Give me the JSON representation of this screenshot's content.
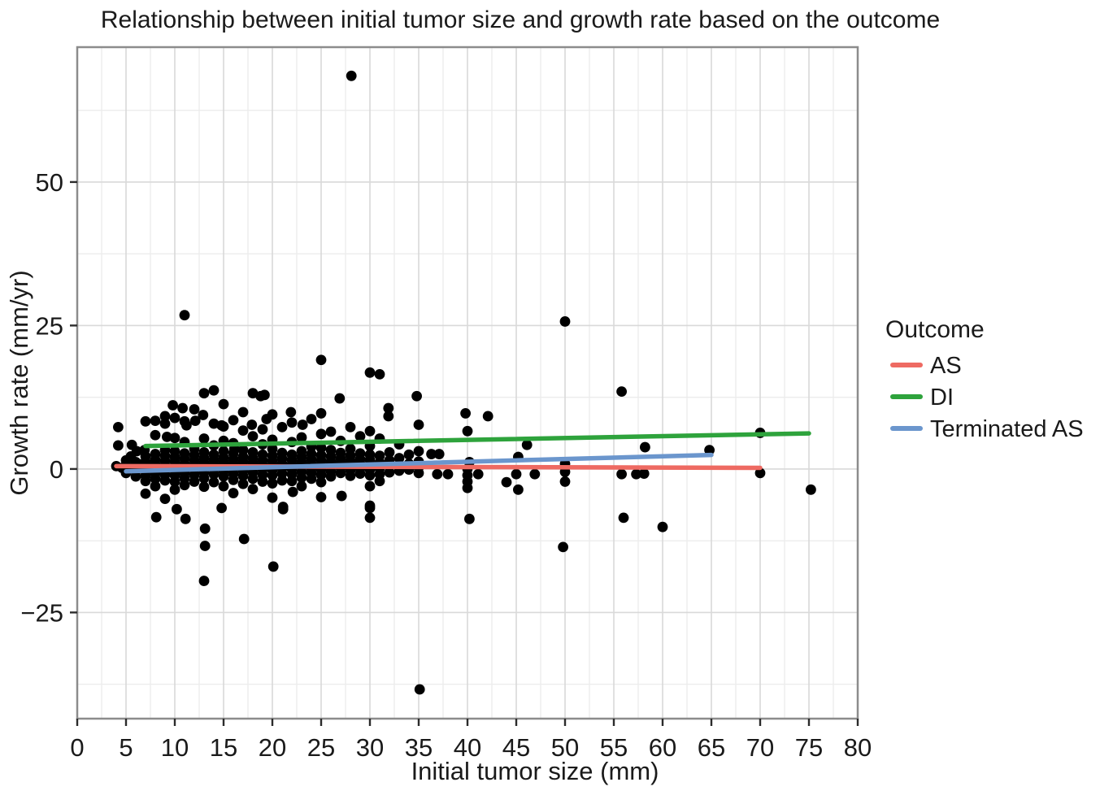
{
  "title": "Relationship between initial tumor size and growth rate based on the outcome",
  "chart_data": {
    "type": "scatter",
    "title": "Relationship between initial tumor size and growth rate based on the outcome",
    "xlabel": "Initial tumor size (mm)",
    "ylabel": "Growth rate (mm/yr)",
    "xlim": [
      0,
      80
    ],
    "ylim": [
      -43.5,
      73.5
    ],
    "x_ticks": [
      0,
      5,
      10,
      15,
      20,
      25,
      30,
      35,
      40,
      45,
      50,
      55,
      60,
      65,
      70,
      75,
      80
    ],
    "x_tick_labels": [
      "0",
      "5",
      "10",
      "15",
      "20",
      "25",
      "30",
      "35",
      "40",
      "45",
      "50",
      "55",
      "60",
      "65",
      "70",
      "75",
      "80"
    ],
    "y_ticks": [
      -25,
      0,
      25,
      50
    ],
    "y_tick_labels": [
      "−25",
      "0",
      "25",
      "50"
    ],
    "grid": true,
    "grid_major_color": "#d9d9d9",
    "grid_minor_color": "#ececec",
    "panel_border_color": "#8c8c8c",
    "point_color": "#000000",
    "point_radius_px": 6.4,
    "legend": {
      "title": "Outcome",
      "position": "right",
      "entries": [
        {
          "label": "AS",
          "color": "#EE6A62"
        },
        {
          "label": "DI",
          "color": "#2EA33C"
        },
        {
          "label": "Terminated AS",
          "color": "#6B96CD"
        }
      ]
    },
    "trend_lines": [
      {
        "name": "AS",
        "color": "#EE6A62",
        "x1": 4,
        "y1": 0.5,
        "x2": 70,
        "y2": 0.2
      },
      {
        "name": "DI",
        "color": "#2EA33C",
        "x1": 7,
        "y1": 4.0,
        "x2": 75,
        "y2": 6.2
      },
      {
        "name": "Terminated AS",
        "color": "#6B96CD",
        "x1": 5,
        "y1": -0.4,
        "x2": 65,
        "y2": 2.45
      }
    ],
    "points": [
      [
        4.2,
        7.3
      ],
      [
        4.2,
        4.1
      ],
      [
        4,
        0.5
      ],
      [
        4.6,
        0.2
      ],
      [
        5,
        1.5
      ],
      [
        5,
        0.7
      ],
      [
        5,
        0
      ],
      [
        5,
        -0.7
      ],
      [
        5.5,
        2.2
      ],
      [
        5.6,
        4.2
      ],
      [
        6,
        1.2
      ],
      [
        6,
        0.4
      ],
      [
        6,
        -0.4
      ],
      [
        6,
        -1.3
      ],
      [
        6.1,
        3.1
      ],
      [
        6.5,
        0.8
      ],
      [
        6.9,
        3.3
      ],
      [
        7,
        8.3
      ],
      [
        7,
        2.2
      ],
      [
        7,
        1.2
      ],
      [
        7,
        0.4
      ],
      [
        7,
        -0.4
      ],
      [
        7,
        -1.2
      ],
      [
        7,
        -2.1
      ],
      [
        7,
        -4.3
      ],
      [
        8,
        8.4
      ],
      [
        8,
        5.9
      ],
      [
        8,
        2.6
      ],
      [
        8,
        1.6
      ],
      [
        8,
        0.8
      ],
      [
        8,
        0
      ],
      [
        8,
        -0.8
      ],
      [
        8,
        -1.7
      ],
      [
        8,
        -3
      ],
      [
        8.1,
        -8.4
      ],
      [
        9,
        9.2
      ],
      [
        9,
        7.9
      ],
      [
        9.2,
        5.6
      ],
      [
        9,
        3.3
      ],
      [
        9,
        2.3
      ],
      [
        9,
        1.4
      ],
      [
        9,
        0.6
      ],
      [
        9,
        -0.2
      ],
      [
        9,
        -1
      ],
      [
        9,
        -2
      ],
      [
        9,
        -5.2
      ],
      [
        9.8,
        11.1
      ],
      [
        10,
        8.9
      ],
      [
        10,
        5.4
      ],
      [
        10,
        3.1
      ],
      [
        10,
        2.1
      ],
      [
        10,
        1.3
      ],
      [
        10,
        0.5
      ],
      [
        10,
        -0.3
      ],
      [
        10,
        -1.1
      ],
      [
        10,
        -2.2
      ],
      [
        10,
        -3.6
      ],
      [
        10.2,
        -7
      ],
      [
        11,
        26.8
      ],
      [
        10.8,
        10.6
      ],
      [
        11,
        8.3
      ],
      [
        11.2,
        7.6
      ],
      [
        11,
        4.7
      ],
      [
        11,
        2.7
      ],
      [
        11,
        1.8
      ],
      [
        11,
        0.9
      ],
      [
        11,
        0.1
      ],
      [
        11,
        -0.7
      ],
      [
        11,
        -1.6
      ],
      [
        11,
        -2.8
      ],
      [
        11.1,
        -8.7
      ],
      [
        12,
        10.4
      ],
      [
        12.1,
        8.4
      ],
      [
        12,
        3.5
      ],
      [
        12,
        2.4
      ],
      [
        12,
        1.5
      ],
      [
        12,
        0.7
      ],
      [
        12,
        -0.1
      ],
      [
        12,
        -1
      ],
      [
        12,
        -2.2
      ],
      [
        12.9,
        9.4
      ],
      [
        13,
        13.2
      ],
      [
        13,
        5.3
      ],
      [
        13,
        2.9
      ],
      [
        13,
        1.9
      ],
      [
        13,
        1.1
      ],
      [
        13,
        0.3
      ],
      [
        13,
        -0.6
      ],
      [
        13,
        -1.6
      ],
      [
        13,
        -3.1
      ],
      [
        13.1,
        -10.4
      ],
      [
        13.1,
        -13.4
      ],
      [
        13,
        -19.5
      ],
      [
        14,
        13.7
      ],
      [
        14,
        7.9
      ],
      [
        14,
        4.1
      ],
      [
        14,
        2.5
      ],
      [
        14,
        1.6
      ],
      [
        14,
        0.8
      ],
      [
        14,
        0
      ],
      [
        14,
        -0.9
      ],
      [
        14,
        -2.3
      ],
      [
        14.8,
        -6.8
      ],
      [
        14.8,
        7.6
      ],
      [
        15,
        11.3
      ],
      [
        15,
        7.4
      ],
      [
        15,
        4.9
      ],
      [
        15,
        3.1
      ],
      [
        15,
        2
      ],
      [
        15,
        1.2
      ],
      [
        15,
        0.4
      ],
      [
        15,
        -0.4
      ],
      [
        15,
        -1.3
      ],
      [
        15,
        -3
      ],
      [
        16,
        8.5
      ],
      [
        16,
        4.5
      ],
      [
        16,
        2.7
      ],
      [
        16,
        1.7
      ],
      [
        16,
        0.9
      ],
      [
        16.1,
        3.5
      ],
      [
        16,
        0.1
      ],
      [
        16,
        -0.8
      ],
      [
        16,
        -1.9
      ],
      [
        16,
        -4.2
      ],
      [
        17,
        9.9
      ],
      [
        17,
        6.7
      ],
      [
        17,
        3.3
      ],
      [
        17,
        2.1
      ],
      [
        17,
        1.3
      ],
      [
        17,
        0.5
      ],
      [
        17,
        -0.3
      ],
      [
        17,
        -1.2
      ],
      [
        17,
        -2.6
      ],
      [
        17.1,
        -12.2
      ],
      [
        18,
        13.2
      ],
      [
        17.9,
        7.7
      ],
      [
        18,
        5.7
      ],
      [
        18,
        2.9
      ],
      [
        18,
        1.9
      ],
      [
        18,
        1.1
      ],
      [
        18,
        0.3
      ],
      [
        18,
        -0.6
      ],
      [
        18,
        -1.7
      ],
      [
        18,
        -3.5
      ],
      [
        19.2,
        12.9
      ],
      [
        18.8,
        12.7
      ],
      [
        19.4,
        8.7
      ],
      [
        19,
        6.9
      ],
      [
        19,
        4.3
      ],
      [
        19,
        2.5
      ],
      [
        19,
        1.5
      ],
      [
        19,
        0.7
      ],
      [
        19,
        -0.1
      ],
      [
        19,
        -1
      ],
      [
        19,
        -2.2
      ],
      [
        20,
        9.5
      ],
      [
        20,
        5.1
      ],
      [
        20,
        3.5
      ],
      [
        20,
        2.3
      ],
      [
        20,
        1.4
      ],
      [
        20,
        0.6
      ],
      [
        20,
        -0.2
      ],
      [
        20,
        -1.1
      ],
      [
        20,
        -2.5
      ],
      [
        20,
        -5
      ],
      [
        20.1,
        -17
      ],
      [
        21.9,
        9.9
      ],
      [
        21,
        7.3
      ],
      [
        21,
        2.8
      ],
      [
        21,
        1.8
      ],
      [
        21,
        0.9
      ],
      [
        21,
        0.1
      ],
      [
        21,
        -0.8
      ],
      [
        21,
        -2
      ],
      [
        21.1,
        -6.6
      ],
      [
        21.1,
        -7
      ],
      [
        22,
        8.1
      ],
      [
        22,
        4.7
      ],
      [
        22,
        2.5
      ],
      [
        22,
        1.6
      ],
      [
        22,
        0.8
      ],
      [
        22,
        0
      ],
      [
        22,
        -0.9
      ],
      [
        22,
        -2.1
      ],
      [
        22.1,
        -4
      ],
      [
        23.1,
        7.7
      ],
      [
        23,
        5.5
      ],
      [
        23,
        3.1
      ],
      [
        23,
        2.1
      ],
      [
        23,
        1.2
      ],
      [
        23,
        0.4
      ],
      [
        23,
        -0.5
      ],
      [
        23,
        -1.5
      ],
      [
        23,
        -3
      ],
      [
        24,
        8.7
      ],
      [
        24,
        3.9
      ],
      [
        24,
        2.6
      ],
      [
        24,
        1.7
      ],
      [
        24,
        0.9
      ],
      [
        24,
        0.1
      ],
      [
        24,
        -0.7
      ],
      [
        24,
        -1.7
      ],
      [
        25,
        19
      ],
      [
        25,
        9.7
      ],
      [
        25,
        6.1
      ],
      [
        25,
        3.7
      ],
      [
        25,
        2.4
      ],
      [
        25,
        1.5
      ],
      [
        25,
        0.7
      ],
      [
        25,
        -0.1
      ],
      [
        25,
        -1
      ],
      [
        25,
        -2.3
      ],
      [
        25,
        -4.9
      ],
      [
        26,
        6.5
      ],
      [
        26,
        3.3
      ],
      [
        26,
        2.2
      ],
      [
        26,
        1.3
      ],
      [
        26,
        0.5
      ],
      [
        26,
        -0.4
      ],
      [
        26,
        -1.3
      ],
      [
        26.9,
        12.3
      ],
      [
        27,
        4.9
      ],
      [
        27,
        2.8
      ],
      [
        27,
        1.8
      ],
      [
        27,
        1
      ],
      [
        27,
        0.2
      ],
      [
        27,
        -0.7
      ],
      [
        27.1,
        -4.7
      ],
      [
        28.1,
        68.5
      ],
      [
        28,
        7.3
      ],
      [
        28,
        3.5
      ],
      [
        28,
        2.3
      ],
      [
        28,
        1.4
      ],
      [
        28,
        0.6
      ],
      [
        28,
        -0.2
      ],
      [
        28,
        -1.2
      ],
      [
        29,
        5.7
      ],
      [
        29,
        2.7
      ],
      [
        29,
        1.7
      ],
      [
        29,
        0.9
      ],
      [
        29,
        0.1
      ],
      [
        29,
        -0.8
      ],
      [
        30,
        16.8
      ],
      [
        30,
        6.6
      ],
      [
        30,
        4
      ],
      [
        30,
        2.5
      ],
      [
        30,
        1.6
      ],
      [
        30,
        0.8
      ],
      [
        30,
        -0.1
      ],
      [
        30,
        -1.1
      ],
      [
        30,
        -3
      ],
      [
        30,
        -6.4
      ],
      [
        30,
        -6.8
      ],
      [
        30,
        -8.5
      ],
      [
        31,
        16.5
      ],
      [
        31,
        5.3
      ],
      [
        31,
        2.3
      ],
      [
        31,
        1.1
      ],
      [
        31,
        0.1
      ],
      [
        31,
        -0.9
      ],
      [
        31,
        -2.1
      ],
      [
        31.9,
        10.6
      ],
      [
        31.9,
        9.2
      ],
      [
        32,
        2.9
      ],
      [
        32,
        1.5
      ],
      [
        32,
        0.5
      ],
      [
        32,
        -0.6
      ],
      [
        33,
        4.3
      ],
      [
        33,
        1.9
      ],
      [
        33,
        0.7
      ],
      [
        33,
        -0.3
      ],
      [
        34,
        2.5
      ],
      [
        34,
        0.9
      ],
      [
        34,
        -0.1
      ],
      [
        34.8,
        12.7
      ],
      [
        35,
        7.7
      ],
      [
        35,
        3.1
      ],
      [
        35,
        1.3
      ],
      [
        35,
        0.3
      ],
      [
        35,
        -0.7
      ],
      [
        35.1,
        -38.4
      ],
      [
        36.3,
        2.6
      ],
      [
        37.1,
        2.6
      ],
      [
        36.9,
        -0.9
      ],
      [
        38,
        -0.9
      ],
      [
        39.8,
        9.7
      ],
      [
        40,
        6.6
      ],
      [
        40.2,
        1.2
      ],
      [
        40,
        0
      ],
      [
        40,
        -1.1
      ],
      [
        40,
        -2.2
      ],
      [
        40,
        -3.3
      ],
      [
        40.2,
        -8.7
      ],
      [
        41.1,
        -0.9
      ],
      [
        42.1,
        9.2
      ],
      [
        44,
        -2.3
      ],
      [
        45.2,
        2.1
      ],
      [
        45,
        -0.9
      ],
      [
        45.2,
        -3.6
      ],
      [
        46.1,
        4.2
      ],
      [
        46.9,
        -0.9
      ],
      [
        50,
        25.7
      ],
      [
        50,
        0.9
      ],
      [
        50,
        -0.5
      ],
      [
        50,
        -2.2
      ],
      [
        49.8,
        -13.6
      ],
      [
        55.8,
        13.5
      ],
      [
        55.8,
        -0.9
      ],
      [
        56,
        -8.5
      ],
      [
        57.3,
        -0.9
      ],
      [
        58.1,
        -0.8
      ],
      [
        58.2,
        3.8
      ],
      [
        60,
        -10.1
      ],
      [
        64.8,
        3.3
      ],
      [
        70,
        6.3
      ],
      [
        70,
        -0.7
      ],
      [
        75.2,
        -3.6
      ]
    ]
  }
}
